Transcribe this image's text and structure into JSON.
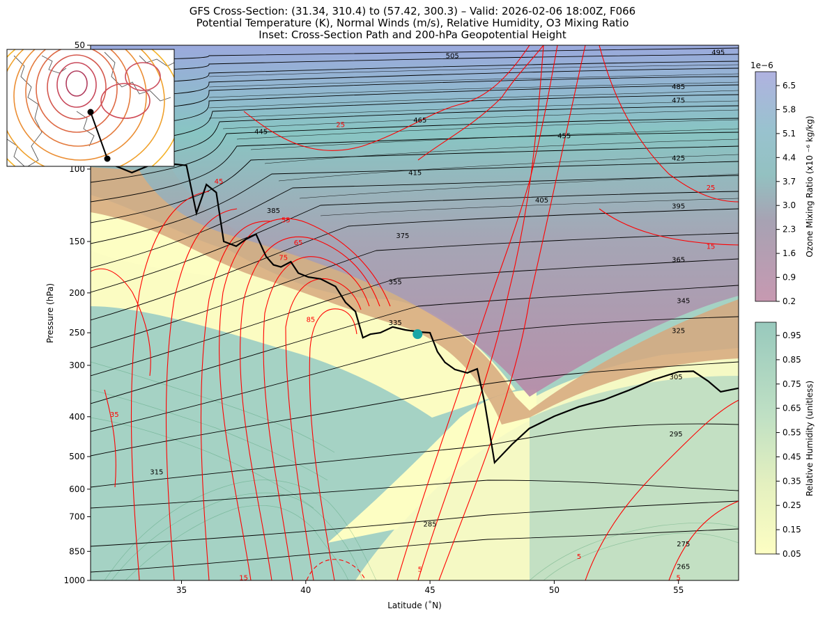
{
  "titles": {
    "line1": "GFS Cross-Section: (31.34, 310.4) to (57.42, 300.3) – Valid: 2026-02-06 18:00Z, F066",
    "line2": "Potential Temperature (K), Normal Winds (m/s), Relative Humidity, O3 Mixing Ratio",
    "line3": "Inset: Cross-Section Path and 200-hPa Geopotential Height"
  },
  "chart_data": {
    "type": "cross-section",
    "xlabel": "Latitude (˚N)",
    "ylabel": "Pressure (hPa)",
    "xlim": [
      31.34,
      57.42
    ],
    "ylim": [
      1000,
      50
    ],
    "y_scale": "log",
    "x_ticks": [
      "35",
      "40",
      "45",
      "50",
      "55"
    ],
    "y_ticks": [
      "50",
      "100",
      "150",
      "200",
      "250",
      "300",
      "400",
      "500",
      "600",
      "700",
      "850",
      "1000"
    ],
    "theta_labels": [
      {
        "text": "505",
        "lat": 45.9,
        "p": 53
      },
      {
        "text": "495",
        "lat": 56.6,
        "p": 52
      },
      {
        "text": "485",
        "lat": 55.0,
        "p": 63
      },
      {
        "text": "475",
        "lat": 55.0,
        "p": 68
      },
      {
        "text": "465",
        "lat": 44.6,
        "p": 76
      },
      {
        "text": "455",
        "lat": 50.4,
        "p": 83
      },
      {
        "text": "445",
        "lat": 38.2,
        "p": 81
      },
      {
        "text": "425",
        "lat": 55.0,
        "p": 94
      },
      {
        "text": "415",
        "lat": 44.4,
        "p": 102
      },
      {
        "text": "405",
        "lat": 49.5,
        "p": 119
      },
      {
        "text": "395",
        "lat": 55.0,
        "p": 123
      },
      {
        "text": "385",
        "lat": 38.7,
        "p": 126
      },
      {
        "text": "375",
        "lat": 43.9,
        "p": 145
      },
      {
        "text": "365",
        "lat": 55.0,
        "p": 166
      },
      {
        "text": "355",
        "lat": 43.6,
        "p": 188
      },
      {
        "text": "345",
        "lat": 55.2,
        "p": 209
      },
      {
        "text": "335",
        "lat": 43.6,
        "p": 236
      },
      {
        "text": "325",
        "lat": 55.0,
        "p": 247
      },
      {
        "text": "305",
        "lat": 54.9,
        "p": 320
      },
      {
        "text": "295",
        "lat": 54.9,
        "p": 440
      },
      {
        "text": "315",
        "lat": 34.0,
        "p": 545
      },
      {
        "text": "285",
        "lat": 45.0,
        "p": 730
      },
      {
        "text": "275",
        "lat": 55.2,
        "p": 815
      },
      {
        "text": "265",
        "lat": 55.2,
        "p": 925
      }
    ],
    "wind_labels": [
      {
        "text": "25",
        "lat": 41.4,
        "p": 78
      },
      {
        "text": "25",
        "lat": 56.3,
        "p": 111
      },
      {
        "text": "45",
        "lat": 36.5,
        "p": 107
      },
      {
        "text": "55",
        "lat": 39.2,
        "p": 133
      },
      {
        "text": "65",
        "lat": 39.7,
        "p": 151
      },
      {
        "text": "75",
        "lat": 39.1,
        "p": 164
      },
      {
        "text": "85",
        "lat": 40.2,
        "p": 232
      },
      {
        "text": "15",
        "lat": 56.3,
        "p": 154
      },
      {
        "text": "35",
        "lat": 32.3,
        "p": 395
      },
      {
        "text": "15",
        "lat": 37.5,
        "p": 985
      },
      {
        "text": "5",
        "lat": 44.6,
        "p": 940
      },
      {
        "text": "5",
        "lat": 51.0,
        "p": 875
      },
      {
        "text": "5",
        "lat": 55.0,
        "p": 985
      }
    ],
    "tropopause": [
      [
        31.5,
        96
      ],
      [
        32.3,
        98
      ],
      [
        33.0,
        102
      ],
      [
        33.7,
        98
      ],
      [
        34.5,
        97
      ],
      [
        35.2,
        98
      ],
      [
        35.6,
        128
      ],
      [
        36.0,
        109
      ],
      [
        36.4,
        114
      ],
      [
        36.7,
        150
      ],
      [
        37.2,
        154
      ],
      [
        37.6,
        148
      ],
      [
        38.0,
        144
      ],
      [
        38.4,
        163
      ],
      [
        38.7,
        171
      ],
      [
        39.0,
        173
      ],
      [
        39.4,
        168
      ],
      [
        39.7,
        179
      ],
      [
        40.1,
        183
      ],
      [
        40.6,
        185
      ],
      [
        41.2,
        193
      ],
      [
        41.6,
        211
      ],
      [
        42.0,
        222
      ],
      [
        42.3,
        257
      ],
      [
        42.6,
        252
      ],
      [
        43.0,
        250
      ],
      [
        43.5,
        242
      ],
      [
        44.0,
        246
      ],
      [
        44.6,
        249
      ],
      [
        45.0,
        250
      ],
      [
        45.3,
        278
      ],
      [
        45.6,
        295
      ],
      [
        46.0,
        307
      ],
      [
        46.5,
        313
      ],
      [
        46.9,
        306
      ],
      [
        47.2,
        370
      ],
      [
        47.6,
        517
      ],
      [
        48.3,
        467
      ],
      [
        49.0,
        427
      ],
      [
        50.0,
        399
      ],
      [
        51.0,
        378
      ],
      [
        52.0,
        364
      ],
      [
        53.0,
        345
      ],
      [
        54.0,
        325
      ],
      [
        55.0,
        311
      ],
      [
        55.6,
        310
      ],
      [
        56.2,
        328
      ],
      [
        56.7,
        348
      ],
      [
        57.1,
        344
      ],
      [
        57.42,
        341
      ]
    ],
    "marker": {
      "lat": 44.5,
      "p": 252,
      "color": "#1aa6a6"
    },
    "colorbars": [
      {
        "label": "Ozone Mixing Ratio (x10 ⁻⁶ kg/kg)",
        "multiplier": "1e−6",
        "ticks": [
          "6.5",
          "5.8",
          "5.1",
          "4.4",
          "3.7",
          "3.0",
          "2.3",
          "1.6",
          "0.9",
          "0.2"
        ],
        "colors": [
          "#c799b1",
          "#b29ab3",
          "#a2a8b8",
          "#92c2c2",
          "#93c4c8",
          "#a4b3d2",
          "#b0b2e0"
        ]
      },
      {
        "label": "Relative Humidity (unitless)",
        "ticks": [
          "0.95",
          "0.85",
          "0.75",
          "0.65",
          "0.55",
          "0.45",
          "0.35",
          "0.25",
          "0.15",
          "0.05"
        ],
        "colors": [
          "#fdfec3",
          "#eef3bf",
          "#d5e9c2",
          "#bfe0c4",
          "#a5d2c4",
          "#98c9bd"
        ]
      }
    ],
    "series": [
      {
        "name": "Potential Temperature (K)",
        "style": "black contours"
      },
      {
        "name": "Normal Winds (m/s)",
        "style": "red contours"
      },
      {
        "name": "Relative Humidity",
        "style": "filled yellow-green"
      },
      {
        "name": "O3 Mixing Ratio",
        "style": "filled purple-teal"
      }
    ],
    "inset": {
      "path_start": [
        31.34,
        310.4
      ],
      "path_end": [
        57.42,
        300.3
      ]
    },
    "colors": {
      "theta": "#000000",
      "wind": "#ff0000",
      "humid": "#98c9bd",
      "dry": "#fdfec3",
      "ozone_low": "#c799b1",
      "ozone_high": "#b0b2e0",
      "brown": "#d6a87e"
    }
  }
}
